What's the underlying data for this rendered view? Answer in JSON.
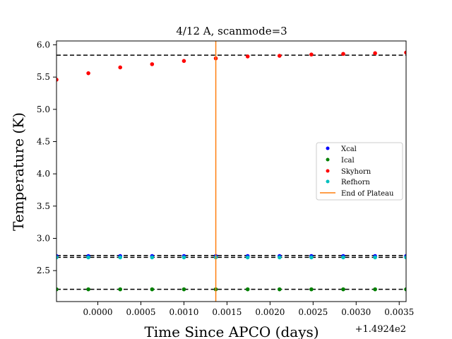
{
  "chart_data": {
    "type": "scatter",
    "title": "4/12 A, scanmode=3",
    "xlabel": "Time Since APCO (days)",
    "ylabel": "Temperature (K)",
    "x_offset_label": "+1.4924e2",
    "xlim": [
      -0.00048,
      0.00358
    ],
    "ylim": [
      2.02,
      6.06
    ],
    "x_ticks": [
      0.0,
      0.0005,
      0.001,
      0.0015,
      0.002,
      0.0025,
      0.003,
      0.0035
    ],
    "x_tick_labels": [
      "0.0000",
      "0.0005",
      "0.0010",
      "0.0015",
      "0.0020",
      "0.0025",
      "0.0030",
      "0.0035"
    ],
    "y_ticks": [
      2.5,
      3.0,
      3.5,
      4.0,
      4.5,
      5.0,
      5.5,
      6.0
    ],
    "y_tick_labels": [
      "2.5",
      "3.0",
      "3.5",
      "4.0",
      "4.5",
      "5.0",
      "5.5",
      "6.0"
    ],
    "x": [
      -0.00048,
      -0.00011,
      0.00026,
      0.00063,
      0.001,
      0.00137,
      0.00174,
      0.00211,
      0.00248,
      0.00285,
      0.00322,
      0.00358
    ],
    "series": [
      {
        "name": "Xcal",
        "color": "#0000ff",
        "values": [
          2.725,
          2.725,
          2.725,
          2.725,
          2.725,
          2.725,
          2.725,
          2.725,
          2.725,
          2.725,
          2.725,
          2.725
        ]
      },
      {
        "name": "Ical",
        "color": "#008000",
        "values": [
          2.21,
          2.21,
          2.21,
          2.21,
          2.21,
          2.21,
          2.21,
          2.21,
          2.21,
          2.21,
          2.21,
          2.21
        ]
      },
      {
        "name": "Skyhorn",
        "color": "#ff0000",
        "values": [
          5.46,
          5.56,
          5.65,
          5.7,
          5.75,
          5.79,
          5.82,
          5.83,
          5.85,
          5.86,
          5.87,
          5.88
        ]
      },
      {
        "name": "Refhorn",
        "color": "#00bfbf",
        "values": [
          2.705,
          2.705,
          2.705,
          2.705,
          2.705,
          2.705,
          2.705,
          2.705,
          2.705,
          2.705,
          2.705,
          2.705
        ]
      }
    ],
    "reference_lines": [
      5.84,
      2.735,
      2.705,
      2.21
    ],
    "reference_line_color": "#000000",
    "vertical_line": {
      "name": "End of Plateau",
      "x": 0.00137,
      "color": "#ff7f0e"
    },
    "legend": {
      "placement": "center-right",
      "entries": [
        "Xcal",
        "Ical",
        "Skyhorn",
        "Refhorn",
        "End of Plateau"
      ]
    },
    "grid": false
  }
}
